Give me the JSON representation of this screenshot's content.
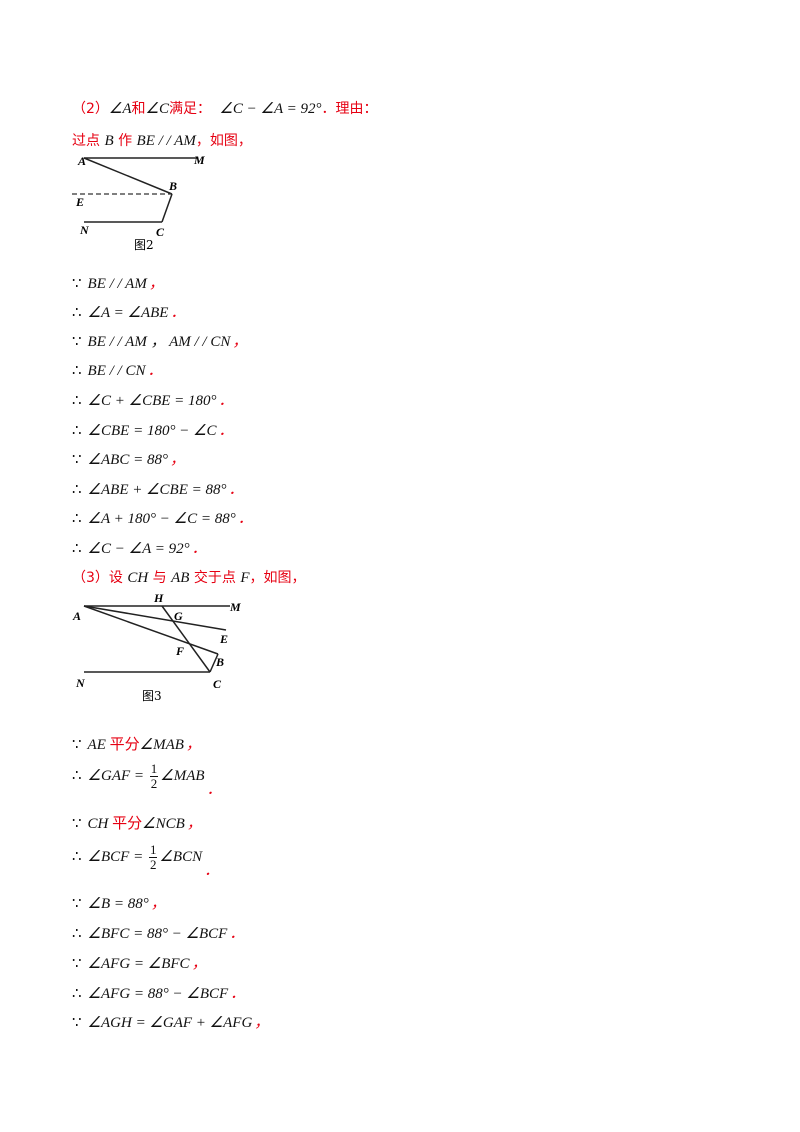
{
  "part2": {
    "label": "（2）",
    "angle_a": "∠A",
    "and": "和",
    "angle_c": "∠C",
    "satisfy": "满足：",
    "relation": "∠C − ∠A = 92°",
    "reason": "．理由：",
    "through_point": "过点",
    "point_b": "B",
    "make": "作",
    "construction": "BE / / AM",
    "as_figure": "，如图，"
  },
  "figure2": {
    "caption": "图2",
    "labels": [
      "A",
      "M",
      "B",
      "E",
      "N",
      "C"
    ]
  },
  "proof2": [
    {
      "sym": "∵",
      "expr": "BE / / AM",
      "end": "，"
    },
    {
      "sym": "∴",
      "expr": "∠A = ∠ABE",
      "end": "．"
    },
    {
      "sym": "∵",
      "expr": "BE / / AM ，  AM / / CN",
      "end": "，"
    },
    {
      "sym": "∴",
      "expr": "BE / / CN",
      "end": "．"
    },
    {
      "sym": "∴",
      "expr": "∠C + ∠CBE = 180°",
      "end": "．"
    },
    {
      "sym": "∴",
      "expr": "∠CBE = 180° − ∠C",
      "end": "．"
    },
    {
      "sym": "∵",
      "expr": "∠ABC = 88°",
      "end": "，"
    },
    {
      "sym": "∴",
      "expr": "∠ABE + ∠CBE = 88°",
      "end": "．"
    },
    {
      "sym": "∴",
      "expr": "∠A + 180° − ∠C = 88°",
      "end": "．"
    },
    {
      "sym": "∴",
      "expr": "∠C − ∠A = 92°",
      "end": "．"
    }
  ],
  "part3": {
    "label": "（3）设",
    "line_ch": "CH",
    "with": "与",
    "line_ab": "AB",
    "intersect": "交于点",
    "point_f": "F",
    "as_figure": "，如图，"
  },
  "figure3": {
    "caption": "图3",
    "labels": [
      "H",
      "M",
      "A",
      "G",
      "E",
      "F",
      "B",
      "N",
      "C"
    ]
  },
  "proof3": {
    "l1": {
      "sym": "∵",
      "a": "AE",
      "mid": "平分",
      "b": "∠MAB",
      "end": "，"
    },
    "l2": {
      "sym": "∴",
      "a": "∠GAF =",
      "num": "1",
      "den": "2",
      "b": "∠MAB",
      "end": "．"
    },
    "l3": {
      "sym": "∵",
      "a": "CH",
      "mid": "平分",
      "b": "∠NCB",
      "end": "，"
    },
    "l4": {
      "sym": "∴",
      "a": "∠BCF =",
      "num": "1",
      "den": "2",
      "b": "∠BCN",
      "end": "．"
    },
    "l5": {
      "sym": "∵",
      "expr": "∠B = 88°",
      "end": "，"
    },
    "l6": {
      "sym": "∴",
      "expr": "∠BFC = 88° − ∠BCF",
      "end": "．"
    },
    "l7": {
      "sym": "∵",
      "expr": "∠AFG = ∠BFC",
      "end": "，"
    },
    "l8": {
      "sym": "∴",
      "expr": "∠AFG = 88° − ∠BCF",
      "end": "．"
    },
    "l9": {
      "sym": "∵",
      "expr": "∠AGH = ∠GAF + ∠AFG",
      "end": "，"
    }
  }
}
